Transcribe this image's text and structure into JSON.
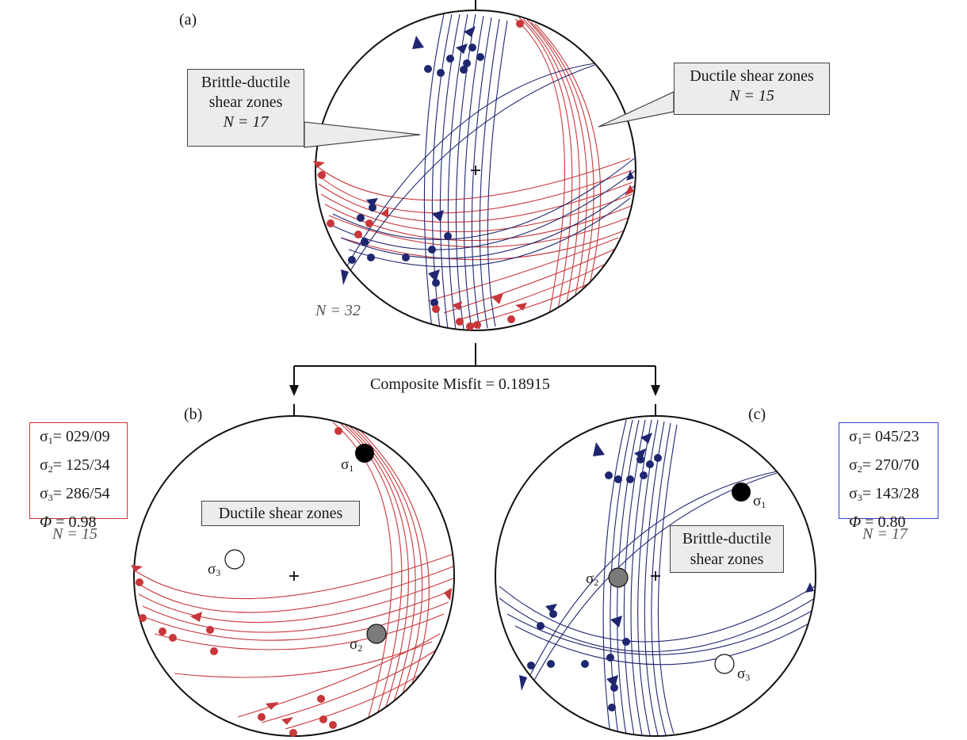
{
  "panels": {
    "a": {
      "label": "(a)",
      "n_label": "N = 32",
      "callout_left": {
        "line1": "Brittle-ductile",
        "line2": "shear zones",
        "line3": "N = 17"
      },
      "callout_right": {
        "line1": "Ductile shear zones",
        "line2": "N = 15"
      }
    },
    "b": {
      "label": "(b)",
      "title": "Ductile shear zones",
      "n_label": "N = 15",
      "stress": {
        "s1": "= 029/09",
        "s2": "= 125/34",
        "s3": "= 286/54",
        "phi_label": "Φ",
        "phi": "= 0.98"
      }
    },
    "c": {
      "label": "(c)",
      "title_line1": "Brittle-ductile",
      "title_line2": "shear zones",
      "n_label": "N = 17",
      "stress": {
        "s1": "= 045/23",
        "s2": "= 270/70",
        "s3": "= 143/28",
        "phi_label": "Φ",
        "phi": "= 0.80"
      }
    }
  },
  "misfit": "Composite Misfit = 0.18915",
  "sigma": {
    "symbol": "σ",
    "s1": "1",
    "s2": "2",
    "s3": "3"
  },
  "colors": {
    "ductile": "#c8373a",
    "brittle": "#1f2670",
    "box_red": "#c83232",
    "box_blue": "#3c3ccc"
  }
}
